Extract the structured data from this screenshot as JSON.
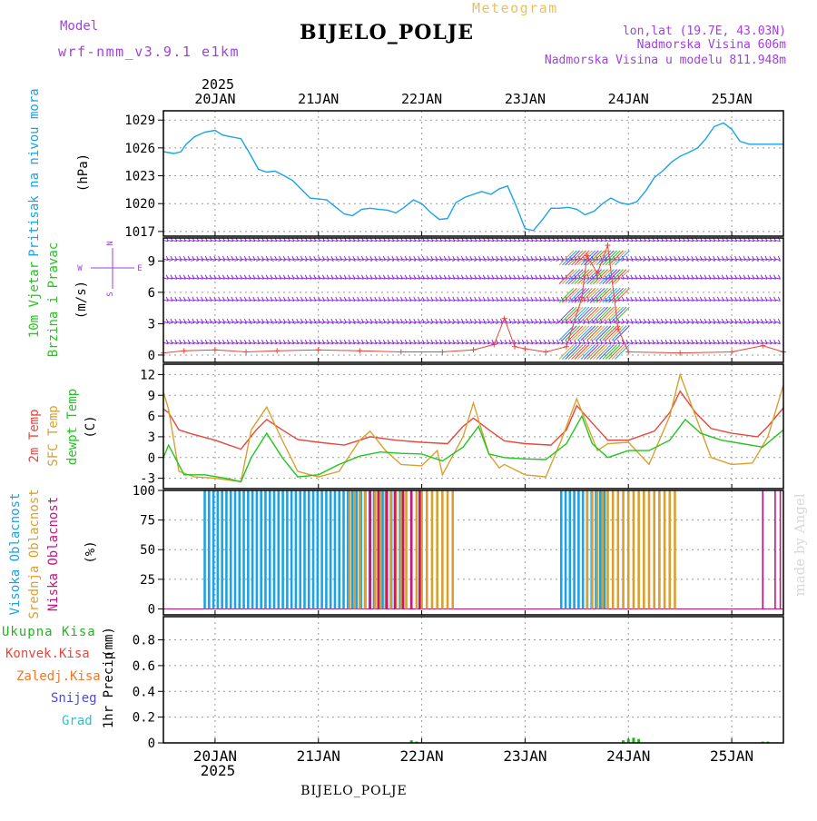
{
  "header": {
    "model_label": "Model",
    "model_name": "wrf-nmm_v3.9.1 e1km",
    "station": "BIJELO_POLJE",
    "app_title": "Meteogram",
    "lonlat": "lon,lat (19.7E, 43.03N)",
    "elevation": "Nadmorska Visina 606m",
    "model_elevation": "Nadmorska Visina u modelu 811.948m",
    "footer_station": "BIJELO_POLJE",
    "watermark": "made by Angel"
  },
  "colors": {
    "pressure": "#1aa3e8",
    "t2m": "#e8463c",
    "sfc": "#d9a030",
    "dew": "#22c61e",
    "high_cloud": "#1aa3e8",
    "mid_cloud": "#d9a030",
    "low_cloud": "#c8137a",
    "wind_barb": "#8a2be2",
    "wind_speed": "#e8463c",
    "precip_total": "#22b41e",
    "label_purple": "#a040e0"
  },
  "chart_data": [
    {
      "type": "line",
      "title": "",
      "ylabel": "Pritisak na nivou mora",
      "yunit": "(hPa)",
      "ylim": [
        1016.5,
        1030
      ],
      "yticks": [
        1017,
        1020,
        1023,
        1026,
        1029
      ],
      "x_unit": "days since 20 JAN 00Z",
      "top_x_ticks": [
        "20JAN",
        "21JAN",
        "22JAN",
        "23JAN",
        "24JAN",
        "25JAN"
      ],
      "top_year": "2025",
      "series": [
        {
          "color": "#1aa3e8",
          "x": [
            -0.5,
            -0.4,
            -0.33,
            -0.28,
            -0.2,
            -0.1,
            0.0,
            0.07,
            0.15,
            0.25,
            0.33,
            0.42,
            0.5,
            0.58,
            0.67,
            0.75,
            0.83,
            0.92,
            1.0,
            1.08,
            1.17,
            1.25,
            1.33,
            1.42,
            1.5,
            1.58,
            1.67,
            1.75,
            1.83,
            1.92,
            2.0,
            2.08,
            2.17,
            2.25,
            2.33,
            2.42,
            2.5,
            2.58,
            2.67,
            2.75,
            2.83,
            2.92,
            3.0,
            3.08,
            3.17,
            3.25,
            3.33,
            3.42,
            3.5,
            3.58,
            3.67,
            3.75,
            3.83,
            3.92,
            4.0,
            4.08,
            4.17,
            4.25,
            4.33,
            4.42,
            4.5,
            4.58,
            4.67,
            4.75,
            4.83,
            4.92,
            5.0,
            5.08,
            5.17,
            5.25,
            5.33,
            5.42,
            5.5
          ],
          "values": [
            1025.6,
            1025.4,
            1025.6,
            1026.4,
            1027.2,
            1027.7,
            1027.9,
            1027.4,
            1027.2,
            1027.0,
            1025.5,
            1023.7,
            1023.4,
            1023.5,
            1023.0,
            1022.5,
            1021.6,
            1020.6,
            1020.5,
            1020.4,
            1019.6,
            1018.9,
            1018.7,
            1019.4,
            1019.5,
            1019.4,
            1019.3,
            1019.0,
            1019.6,
            1020.4,
            1020.0,
            1019.1,
            1018.3,
            1018.4,
            1020.1,
            1020.7,
            1021.0,
            1021.3,
            1021.0,
            1021.6,
            1021.9,
            1019.6,
            1017.3,
            1017.1,
            1018.3,
            1019.5,
            1019.5,
            1019.6,
            1019.4,
            1018.8,
            1019.2,
            1020.0,
            1020.6,
            1020.1,
            1019.9,
            1020.2,
            1021.4,
            1022.8,
            1023.5,
            1024.5,
            1025.1,
            1025.5,
            1026.0,
            1027.0,
            1028.3,
            1028.7,
            1028.0,
            1026.7,
            1026.4,
            1026.4,
            1026.4,
            1026.4,
            1026.4
          ]
        }
      ]
    },
    {
      "type": "line",
      "title": "",
      "ylabel_lines": [
        "10m Vjetar",
        "Brzina i Pravac"
      ],
      "yunit": "(m/s)",
      "direction_legend": [
        "N",
        "E",
        "W",
        "S"
      ],
      "ylim": [
        -0.7,
        11.2
      ],
      "yticks": [
        0,
        3,
        6,
        9
      ],
      "barb_levels": [
        11.0,
        9.2,
        7.4,
        5.3,
        3.2,
        1.2
      ],
      "series": [
        {
          "name": "",
          "color": "#e8463c",
          "x": [
            -0.5,
            -0.3,
            0.0,
            0.3,
            0.6,
            1.0,
            1.4,
            1.8,
            2.2,
            2.5,
            2.7,
            2.8,
            2.9,
            3.0,
            3.2,
            3.4,
            3.55,
            3.6,
            3.7,
            3.8,
            3.9,
            4.0,
            4.5,
            5.0,
            5.3,
            5.5
          ],
          "values": [
            0.2,
            0.4,
            0.5,
            0.3,
            0.4,
            0.5,
            0.4,
            0.3,
            0.3,
            0.5,
            1.0,
            3.5,
            0.8,
            0.6,
            0.3,
            0.8,
            5.5,
            9.5,
            7.8,
            10.5,
            2.5,
            0.3,
            0.2,
            0.3,
            0.9,
            0.3
          ]
        }
      ]
    },
    {
      "type": "line",
      "title": "",
      "ylabel_lines": [
        "2m Temp",
        "SFC Temp",
        "dewpt Temp"
      ],
      "yunit": "(C)",
      "ylim": [
        -4.5,
        13.5
      ],
      "yticks": [
        -3,
        0,
        3,
        6,
        9,
        12
      ],
      "series": [
        {
          "name": "2m Temp",
          "color": "#e8463c",
          "x": [
            -0.5,
            -0.45,
            -0.35,
            -0.25,
            0.0,
            0.25,
            0.4,
            0.5,
            0.65,
            0.8,
            1.0,
            1.25,
            1.4,
            1.5,
            1.75,
            2.0,
            2.25,
            2.4,
            2.5,
            2.65,
            2.8,
            3.0,
            3.25,
            3.4,
            3.5,
            3.65,
            3.8,
            4.0,
            4.25,
            4.4,
            4.5,
            4.65,
            4.8,
            5.0,
            5.25,
            5.35,
            5.5
          ],
          "values": [
            7.0,
            6.5,
            4.0,
            3.5,
            2.5,
            1.2,
            4.0,
            5.5,
            4.0,
            2.6,
            2.2,
            1.8,
            2.5,
            3.0,
            2.5,
            2.2,
            2.0,
            4.5,
            5.7,
            4.0,
            2.4,
            2.0,
            1.8,
            4.0,
            7.5,
            5.0,
            2.5,
            2.5,
            3.8,
            6.5,
            9.6,
            6.5,
            4.2,
            3.5,
            3.0,
            4.5,
            7.2
          ]
        },
        {
          "name": "SFC Temp",
          "color": "#d9a030",
          "x": [
            -0.5,
            -0.45,
            -0.35,
            -0.2,
            0.0,
            0.25,
            0.35,
            0.5,
            0.65,
            0.8,
            1.0,
            1.2,
            1.4,
            1.5,
            1.65,
            1.8,
            2.0,
            2.15,
            2.2,
            2.4,
            2.5,
            2.65,
            2.75,
            2.8,
            3.0,
            3.2,
            3.35,
            3.5,
            3.7,
            3.8,
            4.0,
            4.2,
            4.4,
            4.5,
            4.65,
            4.8,
            5.0,
            5.2,
            5.35,
            5.5
          ],
          "values": [
            9.5,
            7.0,
            -2.0,
            -2.8,
            -3.0,
            -3.5,
            4.0,
            7.3,
            2.5,
            -2.0,
            -2.8,
            -2.0,
            2.5,
            3.8,
            1.0,
            -1.0,
            -1.2,
            1.0,
            -2.5,
            3.0,
            7.9,
            0.5,
            -1.5,
            -1.0,
            -2.5,
            -2.8,
            2.5,
            8.5,
            1.0,
            2.0,
            2.2,
            -1.0,
            6.0,
            12.0,
            6.0,
            0.0,
            -1.0,
            -0.8,
            3.0,
            10.5
          ]
        },
        {
          "name": "dewpt Temp",
          "color": "#22c61e",
          "x": [
            -0.5,
            -0.45,
            -0.3,
            -0.1,
            0.1,
            0.25,
            0.35,
            0.5,
            0.65,
            0.8,
            1.0,
            1.2,
            1.4,
            1.6,
            1.8,
            2.0,
            2.2,
            2.4,
            2.55,
            2.65,
            2.8,
            3.0,
            3.2,
            3.4,
            3.55,
            3.65,
            3.8,
            4.0,
            4.2,
            4.4,
            4.55,
            4.7,
            4.9,
            5.1,
            5.3,
            5.5
          ],
          "values": [
            0.0,
            1.8,
            -2.5,
            -2.5,
            -3.0,
            -3.5,
            0.0,
            3.5,
            0.0,
            -2.8,
            -2.5,
            -1.0,
            0.2,
            0.8,
            0.6,
            0.5,
            -0.5,
            1.5,
            4.5,
            0.5,
            0.0,
            -0.2,
            -0.3,
            2.0,
            6.0,
            2.0,
            0.0,
            1.0,
            1.0,
            2.5,
            5.5,
            3.5,
            2.5,
            2.0,
            1.5,
            4.0
          ]
        }
      ]
    },
    {
      "type": "bar",
      "title": "",
      "ylabel_lines": [
        "Visoka Oblacnost",
        "Srednja Oblacnost",
        "Niska Oblacnost"
      ],
      "yunit": "(%)",
      "ylim": [
        -5,
        100
      ],
      "yticks": [
        0,
        25,
        50,
        75,
        100
      ],
      "segments": [
        {
          "name": "Visoka Oblacnost",
          "color": "#1aa3e8",
          "from": -0.1,
          "to": 1.8,
          "step": 0.042,
          "value": 100
        },
        {
          "name": "Srednja Oblacnost",
          "color": "#d9a030",
          "from": 1.3,
          "to": 2.3,
          "step": 0.05,
          "value": 100
        },
        {
          "name": "Niska Oblacnost",
          "color": "#c8137a",
          "from": 1.5,
          "to": 2.0,
          "step": 0.08,
          "value": 100
        },
        {
          "name": "Visoka Oblacnost",
          "color": "#1aa3e8",
          "from": 3.35,
          "to": 3.8,
          "step": 0.042,
          "value": 100
        },
        {
          "name": "Srednja Oblacnost",
          "color": "#d9a030",
          "from": 3.6,
          "to": 4.45,
          "step": 0.05,
          "value": 100
        }
      ]
    },
    {
      "type": "bar",
      "title": "",
      "ylabel": "1hr Precip",
      "yunit": "(mm)",
      "ylim": [
        0,
        0.98
      ],
      "yticks": [
        0,
        0.2,
        0.4,
        0.6,
        0.8
      ],
      "legend": [
        "Ukupna Kisa",
        "Konvek.Kisa",
        "Zaledj.Kisa",
        "Snijeg",
        "Grad"
      ],
      "legend_colors": [
        "#22b41e",
        "#e8463c",
        "#f07828",
        "#4a4ae0",
        "#20c8c8"
      ],
      "x": [
        1.9,
        1.95,
        3.95,
        4.0,
        4.05,
        4.1,
        5.3,
        5.35
      ],
      "values": [
        0.02,
        0.01,
        0.02,
        0.03,
        0.04,
        0.03,
        0.01,
        0.01
      ],
      "bottom_x_ticks": [
        "20JAN",
        "21JAN",
        "22JAN",
        "23JAN",
        "24JAN",
        "25JAN"
      ],
      "bottom_year": "2025"
    }
  ]
}
